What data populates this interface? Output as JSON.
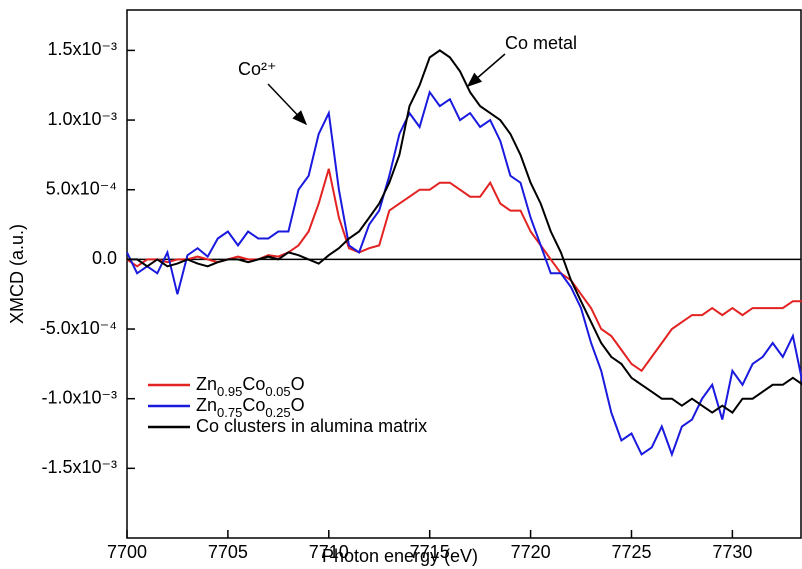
{
  "chart_data": {
    "type": "line",
    "xlabel": "Photon energy (eV)",
    "ylabel": "XMCD (a.u.)",
    "annotations": [
      "Co²⁺",
      "Co metal"
    ],
    "x": [
      7700,
      7700.5,
      7701,
      7701.5,
      7702,
      7702.5,
      7703,
      7703.5,
      7704,
      7704.5,
      7705,
      7705.5,
      7706,
      7706.5,
      7707,
      7707.5,
      7708,
      7708.5,
      7709,
      7709.5,
      7710,
      7710.5,
      7711,
      7711.5,
      7712,
      7712.5,
      7713,
      7713.5,
      7714,
      7714.5,
      7715,
      7715.5,
      7716,
      7716.5,
      7717,
      7717.5,
      7718,
      7718.5,
      7719,
      7719.5,
      7720,
      7720.5,
      7721,
      7721.5,
      7722,
      7722.5,
      7723,
      7723.5,
      7724,
      7724.5,
      7725,
      7725.5,
      7726,
      7726.5,
      7727,
      7727.5,
      7728,
      7728.5,
      7729,
      7729.5,
      7730,
      7730.5,
      7731,
      7731.5,
      7732,
      7732.5,
      7733,
      7733.5
    ],
    "series": [
      {
        "name": "Zn0.95Co0.05O",
        "color": "#e32222",
        "values": [
          0,
          -5e-05,
          0,
          0,
          -2e-05,
          0,
          0,
          2e-05,
          0,
          -2e-05,
          0,
          2e-05,
          0,
          0,
          3e-05,
          2e-05,
          5e-05,
          0.0001,
          0.0002,
          0.0004,
          0.00065,
          0.0003,
          8e-05,
          5e-05,
          8e-05,
          0.0001,
          0.00035,
          0.0004,
          0.00045,
          0.0005,
          0.0005,
          0.00055,
          0.00055,
          0.0005,
          0.00045,
          0.00045,
          0.00055,
          0.0004,
          0.00035,
          0.00035,
          0.0002,
          0.0001,
          0,
          -0.0001,
          -0.00015,
          -0.00025,
          -0.00035,
          -0.0005,
          -0.00055,
          -0.00065,
          -0.00075,
          -0.0008,
          -0.0007,
          -0.0006,
          -0.0005,
          -0.00045,
          -0.0004,
          -0.0004,
          -0.00035,
          -0.0004,
          -0.00035,
          -0.0004,
          -0.00035,
          -0.00035,
          -0.00035,
          -0.00035,
          -0.0003,
          -0.0003
        ]
      },
      {
        "name": "Zn0.75Co0.25O",
        "color": "#1a1adf",
        "values": [
          5e-05,
          -0.0001,
          -5e-05,
          -0.0001,
          5e-05,
          -0.00025,
          3e-05,
          8e-05,
          2e-05,
          0.00015,
          0.0002,
          0.0001,
          0.0002,
          0.00015,
          0.00015,
          0.0002,
          0.0002,
          0.0005,
          0.0006,
          0.0009,
          0.00105,
          0.0005,
          0.0001,
          5e-05,
          0.00025,
          0.00035,
          0.0006,
          0.0009,
          0.00105,
          0.00095,
          0.0012,
          0.0011,
          0.00115,
          0.001,
          0.00105,
          0.00095,
          0.001,
          0.00085,
          0.0006,
          0.00055,
          0.0003,
          0.0001,
          -0.0001,
          -0.0001,
          -0.0002,
          -0.00035,
          -0.0006,
          -0.0008,
          -0.0011,
          -0.0013,
          -0.00125,
          -0.0014,
          -0.00135,
          -0.0012,
          -0.0014,
          -0.0012,
          -0.00115,
          -0.001,
          -0.0009,
          -0.00115,
          -0.0008,
          -0.0009,
          -0.00075,
          -0.0007,
          -0.0006,
          -0.0007,
          -0.00055,
          -0.0009
        ]
      },
      {
        "name": "Co clusters in alumina matrix",
        "color": "#000000",
        "values": [
          0,
          0,
          -5e-05,
          0,
          -5e-05,
          -3e-05,
          0,
          -3e-05,
          -5e-05,
          -2e-05,
          0,
          0,
          -2e-05,
          0,
          2e-05,
          0,
          5e-05,
          3e-05,
          0,
          -3e-05,
          3e-05,
          8e-05,
          0.00015,
          0.0002,
          0.0003,
          0.0004,
          0.00055,
          0.00075,
          0.0011,
          0.00125,
          0.00145,
          0.0015,
          0.00145,
          0.00135,
          0.0012,
          0.0011,
          0.00105,
          0.001,
          0.0009,
          0.00075,
          0.00055,
          0.0004,
          0.0002,
          5e-05,
          -0.00015,
          -0.0003,
          -0.00045,
          -0.0006,
          -0.0007,
          -0.00075,
          -0.00085,
          -0.0009,
          -0.00095,
          -0.001,
          -0.001,
          -0.00105,
          -0.001,
          -0.00105,
          -0.0011,
          -0.00105,
          -0.0011,
          -0.001,
          -0.001,
          -0.00095,
          -0.0009,
          -0.0009,
          -0.00085,
          -0.0009
        ]
      }
    ],
    "xlim": [
      7700,
      7733.4
    ],
    "xticks": [
      7700,
      7705,
      7710,
      7715,
      7720,
      7725,
      7730
    ],
    "ylim": [
      -0.002,
      0.00179
    ],
    "yticks": [
      {
        "value": -0.0015,
        "label": "-1.5x10⁻³"
      },
      {
        "value": -0.001,
        "label": "-1.0x10⁻³"
      },
      {
        "value": -0.0005,
        "label": "-5.0x10⁻⁴"
      },
      {
        "value": 0,
        "label": "0.0"
      },
      {
        "value": 0.0005,
        "label": "5.0x10⁻⁴"
      },
      {
        "value": 0.001,
        "label": "1.0x10⁻³"
      },
      {
        "value": 0.0015,
        "label": "1.5x10⁻³"
      }
    ],
    "legend": "lower left"
  }
}
